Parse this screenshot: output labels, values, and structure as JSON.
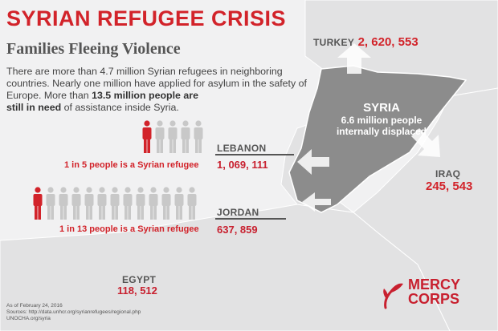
{
  "header": {
    "title": "SYRIAN REFUGEE CRISIS",
    "subtitle": "Families Fleeing Violence",
    "intro_part1": "There are more than 4.7 million Syrian refugees in neighboring countries. Nearly one million have applied for asylum in the safety of Europe. More than ",
    "intro_bold1": "13.5 million people are",
    "intro_bold2": "still in need",
    "intro_part2": " of assistance inside Syria."
  },
  "countries": {
    "turkey": {
      "name": "TURKEY",
      "value": "2, 620, 553"
    },
    "syria": {
      "name": "SYRIA",
      "line1": "6.6 million people",
      "line2": "internally displaced"
    },
    "iraq": {
      "name": "IRAQ",
      "value": "245, 543"
    },
    "lebanon": {
      "name": "LEBANON",
      "value": "1, 069, 111",
      "ratio_text": "1 in 5 people is a Syrian refugee",
      "people_total": 5,
      "people_refugee": 1
    },
    "jordan": {
      "name": "JORDAN",
      "value": "637, 859",
      "ratio_text": "1 in 13 people is a Syrian refugee",
      "people_total": 13,
      "people_refugee": 1
    },
    "egypt": {
      "name": "EGYPT",
      "value": "118, 512"
    }
  },
  "footer": {
    "date": "As of February 24, 2016",
    "sources": "Sources: http://data.unhcr.org/syrianrefugees/regional.php",
    "source2": "UNOCHA.org/syria"
  },
  "logo": {
    "line1": "MERCY",
    "line2": "CORPS"
  },
  "colors": {
    "accent": "#d2232a",
    "person_gray": "#c8c8c8",
    "syria_fill": "#8c8c8c",
    "land": "#e2e2e3"
  }
}
